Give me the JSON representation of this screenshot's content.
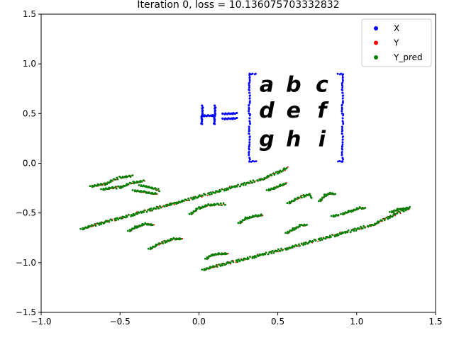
{
  "chart_data": {
    "type": "scatter",
    "title": "Iteration 0, loss = 10.136075703332832",
    "xlabel": "",
    "ylabel": "",
    "xlim": [
      -1.0,
      1.5
    ],
    "ylim": [
      -1.5,
      1.5
    ],
    "x_ticks": [
      "−1.0",
      "−0.5",
      "0.0",
      "0.5",
      "1.0",
      "1.5"
    ],
    "y_ticks": [
      "1.5",
      "1.0",
      "0.5",
      "0.0",
      "−0.5",
      "−1.0",
      "−1.5"
    ],
    "x_tick_values": [
      -1.0,
      -0.5,
      0.0,
      0.5,
      1.0,
      1.5
    ],
    "y_tick_values": [
      1.5,
      1.0,
      0.5,
      0.0,
      -0.5,
      -1.0,
      -1.5
    ],
    "grid": false,
    "legend_position": "top-right",
    "series": [
      {
        "name": "X",
        "color": "#0000ff",
        "description_shape": "handwritten matrix equation H = [a b c; d e f; g h i] drawn as points",
        "strokes": [
          {
            "label": "H",
            "points": [
              [
                0.02,
                0.58
              ],
              [
                0.02,
                0.39
              ],
              [
                0.1,
                0.58
              ],
              [
                0.1,
                0.39
              ],
              [
                0.02,
                0.48
              ],
              [
                0.1,
                0.48
              ]
            ]
          },
          {
            "label": "=",
            "points": [
              [
                0.15,
                0.5
              ],
              [
                0.24,
                0.5
              ],
              [
                0.15,
                0.45
              ],
              [
                0.24,
                0.45
              ]
            ]
          },
          {
            "label": "left-bracket",
            "points": [
              [
                0.36,
                0.9
              ],
              [
                0.32,
                0.9
              ],
              [
                0.32,
                0.02
              ],
              [
                0.36,
                0.02
              ]
            ]
          },
          {
            "label": "right-bracket",
            "points": [
              [
                0.88,
                0.9
              ],
              [
                0.91,
                0.9
              ],
              [
                0.91,
                0.02
              ],
              [
                0.88,
                0.02
              ]
            ]
          }
        ],
        "glyphs": [
          {
            "text": "a",
            "x": 0.43,
            "y": 0.72
          },
          {
            "text": "b",
            "x": 0.6,
            "y": 0.72
          },
          {
            "text": "c",
            "x": 0.78,
            "y": 0.72
          },
          {
            "text": "d",
            "x": 0.43,
            "y": 0.46
          },
          {
            "text": "e",
            "x": 0.6,
            "y": 0.46
          },
          {
            "text": "f",
            "x": 0.78,
            "y": 0.46
          },
          {
            "text": "g",
            "x": 0.43,
            "y": 0.17
          },
          {
            "text": "h",
            "x": 0.6,
            "y": 0.17
          },
          {
            "text": "i",
            "x": 0.78,
            "y": 0.17
          }
        ]
      },
      {
        "name": "Y",
        "color": "#ff0000",
        "description_shape": "sheared/compressed copy of the X glyphs, mostly hidden under Y_pred"
      },
      {
        "name": "Y_pred",
        "color": "#008000",
        "description_shape": "sheared copy of X glyphs (slanted strokes)",
        "strokes": [
          {
            "label": "left-bracket-sheared",
            "points": [
              [
                -0.75,
                -0.66
              ],
              [
                -0.15,
                -0.4
              ],
              [
                0.4,
                -0.16
              ],
              [
                0.56,
                -0.05
              ]
            ]
          },
          {
            "label": "right-bracket-sheared",
            "points": [
              [
                0.02,
                -1.07
              ],
              [
                0.55,
                -0.86
              ],
              [
                1.1,
                -0.62
              ],
              [
                1.33,
                -0.45
              ]
            ]
          },
          {
            "label": "H-sheared-1",
            "points": [
              [
                -0.69,
                -0.23
              ],
              [
                -0.6,
                -0.21
              ],
              [
                -0.5,
                -0.14
              ],
              [
                -0.42,
                -0.13
              ]
            ]
          },
          {
            "label": "H-sheared-2",
            "points": [
              [
                -0.62,
                -0.26
              ],
              [
                -0.5,
                -0.24
              ],
              [
                -0.41,
                -0.19
              ],
              [
                -0.35,
                -0.18
              ]
            ]
          },
          {
            "label": "eq-sheared-1",
            "points": [
              [
                -0.38,
                -0.22
              ],
              [
                -0.34,
                -0.23
              ],
              [
                -0.25,
                -0.27
              ]
            ]
          },
          {
            "label": "eq-sheared-2",
            "points": [
              [
                -0.42,
                -0.27
              ],
              [
                -0.34,
                -0.29
              ],
              [
                -0.27,
                -0.31
              ]
            ]
          },
          {
            "label": "a",
            "points": [
              [
                0.43,
                -0.27
              ],
              [
                0.47,
                -0.25
              ],
              [
                0.52,
                -0.22
              ],
              [
                0.55,
                -0.2
              ]
            ]
          },
          {
            "label": "b",
            "points": [
              [
                0.56,
                -0.4
              ],
              [
                0.66,
                -0.33
              ],
              [
                0.7,
                -0.31
              ],
              [
                0.71,
                -0.35
              ]
            ]
          },
          {
            "label": "c",
            "points": [
              [
                0.76,
                -0.38
              ],
              [
                0.8,
                -0.32
              ],
              [
                0.83,
                -0.3
              ],
              [
                0.86,
                -0.31
              ]
            ]
          },
          {
            "label": "d",
            "points": [
              [
                -0.06,
                -0.51
              ],
              [
                0.0,
                -0.45
              ],
              [
                0.06,
                -0.42
              ],
              [
                0.16,
                -0.41
              ]
            ]
          },
          {
            "label": "e",
            "points": [
              [
                0.25,
                -0.6
              ],
              [
                0.3,
                -0.55
              ],
              [
                0.36,
                -0.53
              ],
              [
                0.4,
                -0.52
              ]
            ]
          },
          {
            "label": "f",
            "points": [
              [
                0.55,
                -0.7
              ],
              [
                0.6,
                -0.66
              ],
              [
                0.65,
                -0.62
              ],
              [
                0.68,
                -0.62
              ]
            ]
          },
          {
            "label": "g",
            "points": [
              [
                -0.45,
                -0.68
              ],
              [
                -0.4,
                -0.64
              ],
              [
                -0.34,
                -0.61
              ],
              [
                -0.29,
                -0.62
              ]
            ]
          },
          {
            "label": "h",
            "points": [
              [
                -0.32,
                -0.86
              ],
              [
                -0.22,
                -0.79
              ],
              [
                -0.16,
                -0.76
              ],
              [
                -0.11,
                -0.76
              ]
            ]
          },
          {
            "label": "i",
            "points": [
              [
                0.04,
                -0.96
              ],
              [
                0.08,
                -0.92
              ],
              [
                0.13,
                -0.91
              ],
              [
                0.18,
                -0.91
              ]
            ]
          },
          {
            "label": "extra-1",
            "points": [
              [
                0.84,
                -0.53
              ],
              [
                0.88,
                -0.52
              ]
            ]
          },
          {
            "label": "extra-2",
            "points": [
              [
                0.9,
                -0.51
              ],
              [
                0.96,
                -0.48
              ],
              [
                1.02,
                -0.45
              ],
              [
                1.05,
                -0.45
              ]
            ]
          },
          {
            "label": "extra-3",
            "points": [
              [
                1.21,
                -0.49
              ],
              [
                1.27,
                -0.46
              ],
              [
                1.33,
                -0.45
              ]
            ]
          }
        ]
      }
    ]
  }
}
